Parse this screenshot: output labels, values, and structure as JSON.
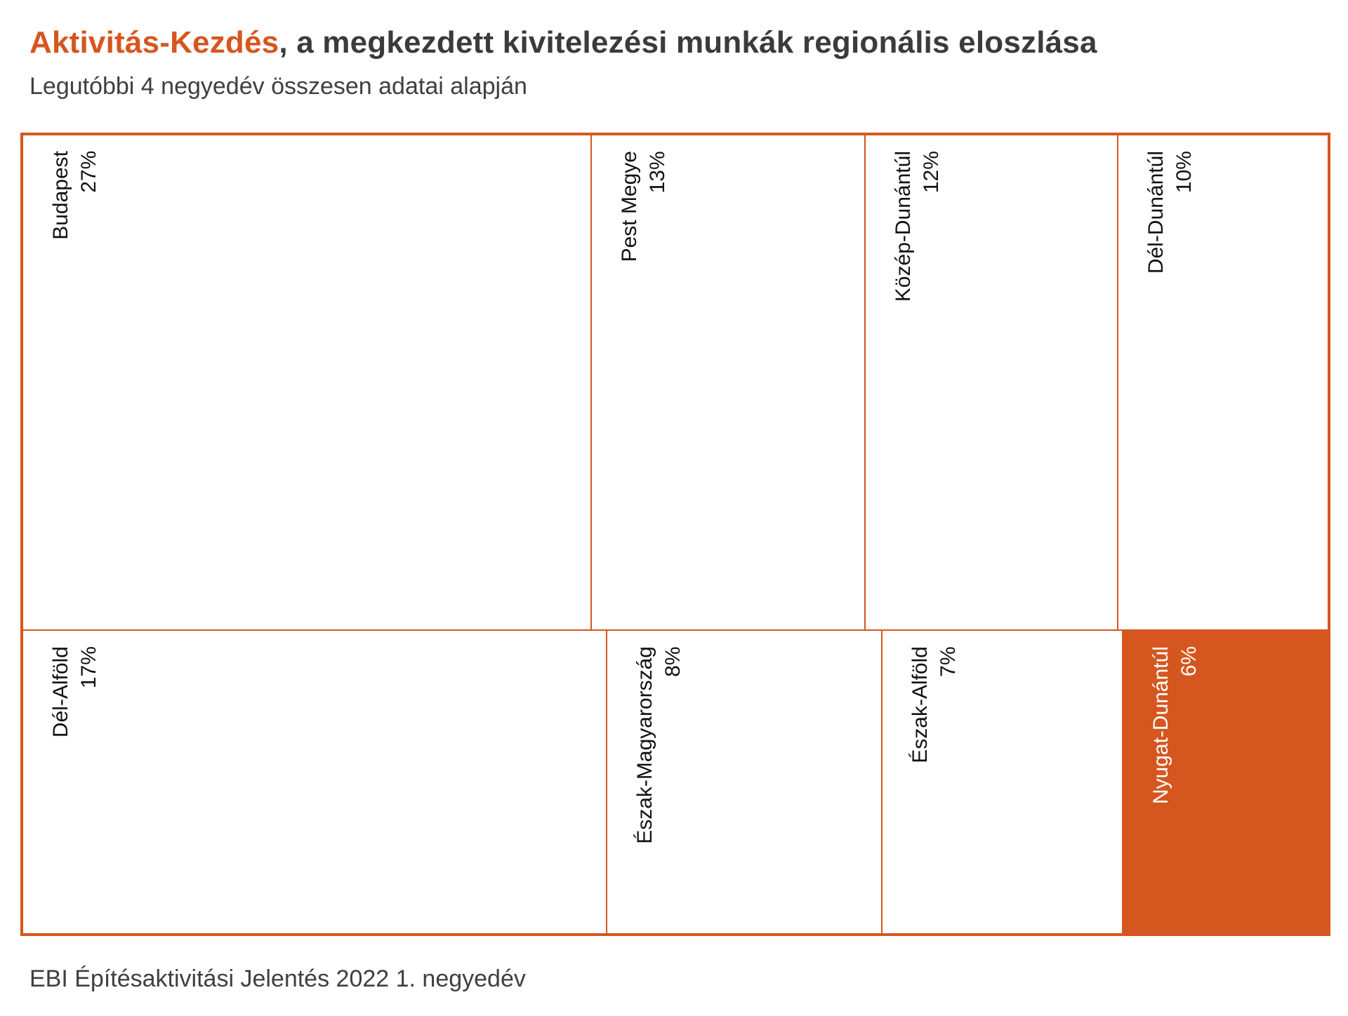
{
  "title": {
    "accent": "Aktivitás-Kezdés",
    "rest": ", a megkezdett kivitelezési munkák regionális eloszlása"
  },
  "subtitle": "Legutóbbi 4 negyedév összesen adatai alapján",
  "source": "EBI Építésaktivitási Jelentés 2022 1. negyedév",
  "chart_data": {
    "type": "treemap",
    "unit": "%",
    "border_color": "#d6561f",
    "highlight_color": "#d6561f",
    "rows": [
      {
        "items": [
          {
            "name": "Budapest",
            "value": 27,
            "label": "27%"
          },
          {
            "name": "Pest Megye",
            "value": 13,
            "label": "13%"
          },
          {
            "name": "Közép-Dunántúl",
            "value": 12,
            "label": "12%"
          },
          {
            "name": "Dél-Dunántúl",
            "value": 10,
            "label": "10%"
          }
        ]
      },
      {
        "items": [
          {
            "name": "Dél-Alföld",
            "value": 17,
            "label": "17%"
          },
          {
            "name": "Észak-Magyarország",
            "value": 8,
            "label": "8%"
          },
          {
            "name": "Észak-Alföld",
            "value": 7,
            "label": "7%"
          },
          {
            "name": "Nyugat-Dunántúl",
            "value": 6,
            "label": "6%",
            "highlight": true
          }
        ]
      }
    ]
  }
}
